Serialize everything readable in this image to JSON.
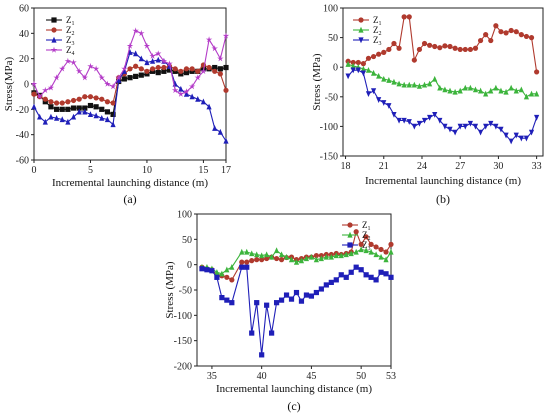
{
  "chart_data": [
    {
      "type": "line",
      "panel_label": "(a)",
      "xlabel": "Incremental launching distance (m)",
      "ylabel": "Stress(MPa)",
      "xlim": [
        0,
        17
      ],
      "ylim": [
        -60,
        60
      ],
      "xticks": [
        0,
        5,
        10,
        15,
        17
      ],
      "yticks": [
        -60,
        -40,
        -20,
        0,
        20,
        40,
        60
      ],
      "legend_position": "top-left",
      "series": [
        {
          "name": "Z",
          "sub": "1",
          "color": "#111111",
          "marker": "square",
          "x": [
            0,
            0.5,
            1,
            1.5,
            2,
            2.5,
            3,
            3.5,
            4,
            4.5,
            5,
            5.5,
            6,
            6.5,
            7,
            7.5,
            8,
            8.5,
            9,
            9.5,
            10,
            10.5,
            11,
            11.5,
            12,
            12.5,
            13,
            13.5,
            14,
            14.5,
            15,
            15.5,
            16,
            16.5,
            17
          ],
          "values": [
            -7,
            -9,
            -14,
            -18,
            -20,
            -20,
            -20,
            -19,
            -19,
            -19,
            -17,
            -18,
            -20,
            -22,
            -24,
            2,
            4,
            5,
            6,
            7,
            8,
            10,
            9,
            10,
            11,
            10,
            8,
            9,
            10,
            10,
            12,
            12,
            13,
            12,
            13
          ]
        },
        {
          "name": "Z",
          "sub": "2",
          "color": "#b03a2e",
          "marker": "circle",
          "x": [
            0,
            0.5,
            1,
            1.5,
            2,
            2.5,
            3,
            3.5,
            4,
            4.5,
            5,
            5.5,
            6,
            6.5,
            7,
            7.5,
            8,
            8.5,
            9,
            9.5,
            10,
            10.5,
            11,
            11.5,
            12,
            12.5,
            13,
            13.5,
            14,
            14.5,
            15,
            15.5,
            16,
            16.5,
            17
          ],
          "values": [
            -8,
            -10,
            -12,
            -14,
            -15,
            -15,
            -14,
            -13,
            -12,
            -10,
            -10,
            -11,
            -12,
            -14,
            -15,
            5,
            8,
            12,
            14,
            12,
            10,
            12,
            13,
            13,
            14,
            12,
            10,
            12,
            12,
            10,
            15,
            13,
            10,
            8,
            -5
          ]
        },
        {
          "name": "Z",
          "sub": "3",
          "color": "#1f1fb8",
          "marker": "triangle",
          "x": [
            0,
            0.5,
            1,
            1.5,
            2,
            2.5,
            3,
            3.5,
            4,
            4.5,
            5,
            5.5,
            6,
            6.5,
            7,
            7.5,
            8,
            8.5,
            9,
            9.5,
            10,
            10.5,
            11,
            11.5,
            12,
            12.5,
            13,
            13.5,
            14,
            14.5,
            15,
            15.5,
            16,
            16.5,
            17
          ],
          "values": [
            -18,
            -26,
            -30,
            -26,
            -27,
            -28,
            -30,
            -26,
            -22,
            -22,
            -24,
            -25,
            -27,
            -28,
            -32,
            3,
            10,
            25,
            24,
            20,
            17,
            18,
            19,
            18,
            14,
            0,
            -4,
            -8,
            -10,
            -12,
            -14,
            -18,
            -35,
            -38,
            -45
          ]
        },
        {
          "name": "Z",
          "sub": "4",
          "color": "#b43cc8",
          "marker": "star",
          "x": [
            0,
            0.5,
            1,
            1.5,
            2,
            2.5,
            3,
            3.5,
            4,
            4.5,
            5,
            5.5,
            6,
            6.5,
            7,
            7.5,
            8,
            8.5,
            9,
            9.5,
            10,
            10.5,
            11,
            11.5,
            12,
            12.5,
            13,
            13.5,
            14,
            14.5,
            15,
            15.5,
            16,
            16.5,
            17
          ],
          "values": [
            0,
            -10,
            -5,
            -3,
            5,
            12,
            18,
            17,
            10,
            5,
            14,
            12,
            5,
            0,
            -2,
            5,
            12,
            30,
            42,
            40,
            30,
            22,
            24,
            18,
            16,
            -5,
            -8,
            -6,
            -2,
            5,
            10,
            35,
            28,
            20,
            38
          ]
        }
      ]
    },
    {
      "type": "line",
      "panel_label": "(b)",
      "xlabel": "Incremental launching distance (m)",
      "ylabel": "Stress (MPa)",
      "xlim": [
        17.8,
        33.5
      ],
      "ylim": [
        -150,
        100
      ],
      "xticks": [
        18,
        21,
        24,
        27,
        30,
        33
      ],
      "yticks": [
        -150,
        -100,
        -50,
        0,
        50,
        100
      ],
      "legend_position": "top-left",
      "series": [
        {
          "name": "Z",
          "sub": "1",
          "color": "#b03a2e",
          "marker": "circle",
          "x": [
            18.2,
            18.6,
            19,
            19.4,
            19.8,
            20.2,
            20.6,
            21,
            21.4,
            21.8,
            22.2,
            22.6,
            23,
            23.4,
            23.8,
            24.2,
            24.6,
            25,
            25.4,
            25.8,
            26.2,
            26.6,
            27,
            27.4,
            27.8,
            28.2,
            28.6,
            29,
            29.4,
            29.8,
            30.2,
            30.6,
            31,
            31.4,
            31.8,
            32.2,
            32.6,
            33
          ],
          "values": [
            10,
            8,
            8,
            6,
            15,
            18,
            22,
            25,
            30,
            40,
            32,
            85,
            85,
            12,
            30,
            40,
            37,
            35,
            33,
            36,
            35,
            32,
            30,
            30,
            30,
            32,
            45,
            55,
            45,
            70,
            60,
            58,
            62,
            60,
            55,
            52,
            50,
            -8
          ]
        },
        {
          "name": "Z",
          "sub": "2",
          "color": "#3cb43c",
          "marker": "triangle",
          "x": [
            18.2,
            18.6,
            19,
            19.4,
            19.8,
            20.2,
            20.6,
            21,
            21.4,
            21.8,
            22.2,
            22.6,
            23,
            23.4,
            23.8,
            24.2,
            24.6,
            25,
            25.4,
            25.8,
            26.2,
            26.6,
            27,
            27.4,
            27.8,
            28.2,
            28.6,
            29,
            29.4,
            29.8,
            30.2,
            30.6,
            31,
            31.4,
            31.8,
            32.2,
            32.6,
            33
          ],
          "values": [
            5,
            2,
            0,
            -3,
            -5,
            -10,
            -15,
            -20,
            -22,
            -25,
            -28,
            -30,
            -30,
            -30,
            -32,
            -30,
            -28,
            -20,
            -35,
            -38,
            -40,
            -42,
            -40,
            -35,
            -35,
            -38,
            -40,
            -45,
            -40,
            -35,
            -40,
            -42,
            -35,
            -40,
            -38,
            -50,
            -45,
            -45
          ]
        },
        {
          "name": "Z",
          "sub": "3",
          "color": "#1f1fb8",
          "marker": "triangle-down",
          "x": [
            18.2,
            18.6,
            19,
            19.4,
            19.8,
            20.2,
            20.6,
            21,
            21.4,
            21.8,
            22.2,
            22.6,
            23,
            23.4,
            23.8,
            24.2,
            24.6,
            25,
            25.4,
            25.8,
            26.2,
            26.6,
            27,
            27.4,
            27.8,
            28.2,
            28.6,
            29,
            29.4,
            29.8,
            30.2,
            30.6,
            31,
            31.4,
            31.8,
            32.2,
            32.6,
            33
          ],
          "values": [
            -15,
            -5,
            -5,
            -10,
            -45,
            -40,
            -55,
            -60,
            -65,
            -80,
            -90,
            -90,
            -92,
            -100,
            -95,
            -90,
            -85,
            -80,
            -90,
            -100,
            -105,
            -110,
            -100,
            -100,
            -95,
            -100,
            -110,
            -100,
            -95,
            -100,
            -105,
            -115,
            -125,
            -115,
            -120,
            -120,
            -110,
            -85
          ]
        }
      ]
    },
    {
      "type": "line",
      "panel_label": "(c)",
      "xlabel": "Incremental launching distance (m)",
      "ylabel": "Stress (MPa)",
      "xlim": [
        33.5,
        53
      ],
      "ylim": [
        -200,
        100
      ],
      "xticks": [
        35,
        40,
        45,
        50,
        53
      ],
      "yticks": [
        -200,
        -150,
        -100,
        -50,
        0,
        50,
        100
      ],
      "legend_position": "top-right",
      "series": [
        {
          "name": "Z",
          "sub": "1",
          "color": "#b03a2e",
          "marker": "circle",
          "x": [
            34,
            34.5,
            35,
            35.5,
            36,
            36.5,
            37,
            38,
            38.5,
            39,
            39.5,
            40,
            40.5,
            41,
            41.5,
            42,
            42.5,
            43,
            43.5,
            44,
            44.5,
            45,
            45.5,
            46,
            46.5,
            47,
            47.5,
            48,
            48.5,
            49,
            49.5,
            50,
            50.5,
            51,
            51.5,
            52,
            52.5,
            53
          ],
          "values": [
            -5,
            -8,
            -10,
            -20,
            -22,
            -25,
            -30,
            5,
            5,
            8,
            10,
            10,
            12,
            15,
            12,
            10,
            14,
            15,
            10,
            12,
            15,
            15,
            18,
            18,
            20,
            20,
            22,
            20,
            22,
            25,
            65,
            40,
            55,
            40,
            35,
            30,
            25,
            40
          ]
        },
        {
          "name": "Z",
          "sub": "2",
          "color": "#3cb43c",
          "marker": "triangle",
          "x": [
            34,
            34.5,
            35,
            35.5,
            36,
            36.5,
            37,
            38,
            38.5,
            39,
            39.5,
            40,
            40.5,
            41,
            41.5,
            42,
            42.5,
            43,
            43.5,
            44,
            44.5,
            45,
            45.5,
            46,
            46.5,
            47,
            47.5,
            48,
            48.5,
            49,
            49.5,
            50,
            50.5,
            51,
            51.5,
            52,
            52.5,
            53
          ],
          "values": [
            -5,
            -5,
            -8,
            -15,
            -18,
            -10,
            -5,
            25,
            25,
            22,
            20,
            18,
            20,
            15,
            28,
            20,
            15,
            10,
            5,
            8,
            12,
            15,
            10,
            12,
            15,
            15,
            18,
            18,
            20,
            22,
            25,
            30,
            28,
            25,
            20,
            15,
            10,
            25
          ]
        },
        {
          "name": "Z",
          "sub": "3",
          "color": "#1f1fb8",
          "marker": "square",
          "x": [
            34,
            34.5,
            35,
            35.5,
            36,
            36.5,
            37,
            38,
            38.5,
            39,
            39.5,
            40,
            40.5,
            41,
            41.5,
            42,
            42.5,
            43,
            43.5,
            44,
            44.5,
            45,
            45.5,
            46,
            46.5,
            47,
            47.5,
            48,
            48.5,
            49,
            49.5,
            50,
            50.5,
            51,
            51.5,
            52,
            52.5,
            53
          ],
          "values": [
            -8,
            -10,
            -12,
            -25,
            -65,
            -70,
            -75,
            -5,
            -5,
            -135,
            -75,
            -178,
            -80,
            -135,
            -75,
            -70,
            -60,
            -68,
            -55,
            -72,
            -60,
            -62,
            -55,
            -48,
            -40,
            -35,
            -30,
            -20,
            -25,
            -15,
            -5,
            -10,
            -20,
            -25,
            -30,
            -15,
            -18,
            -25
          ]
        }
      ]
    }
  ]
}
